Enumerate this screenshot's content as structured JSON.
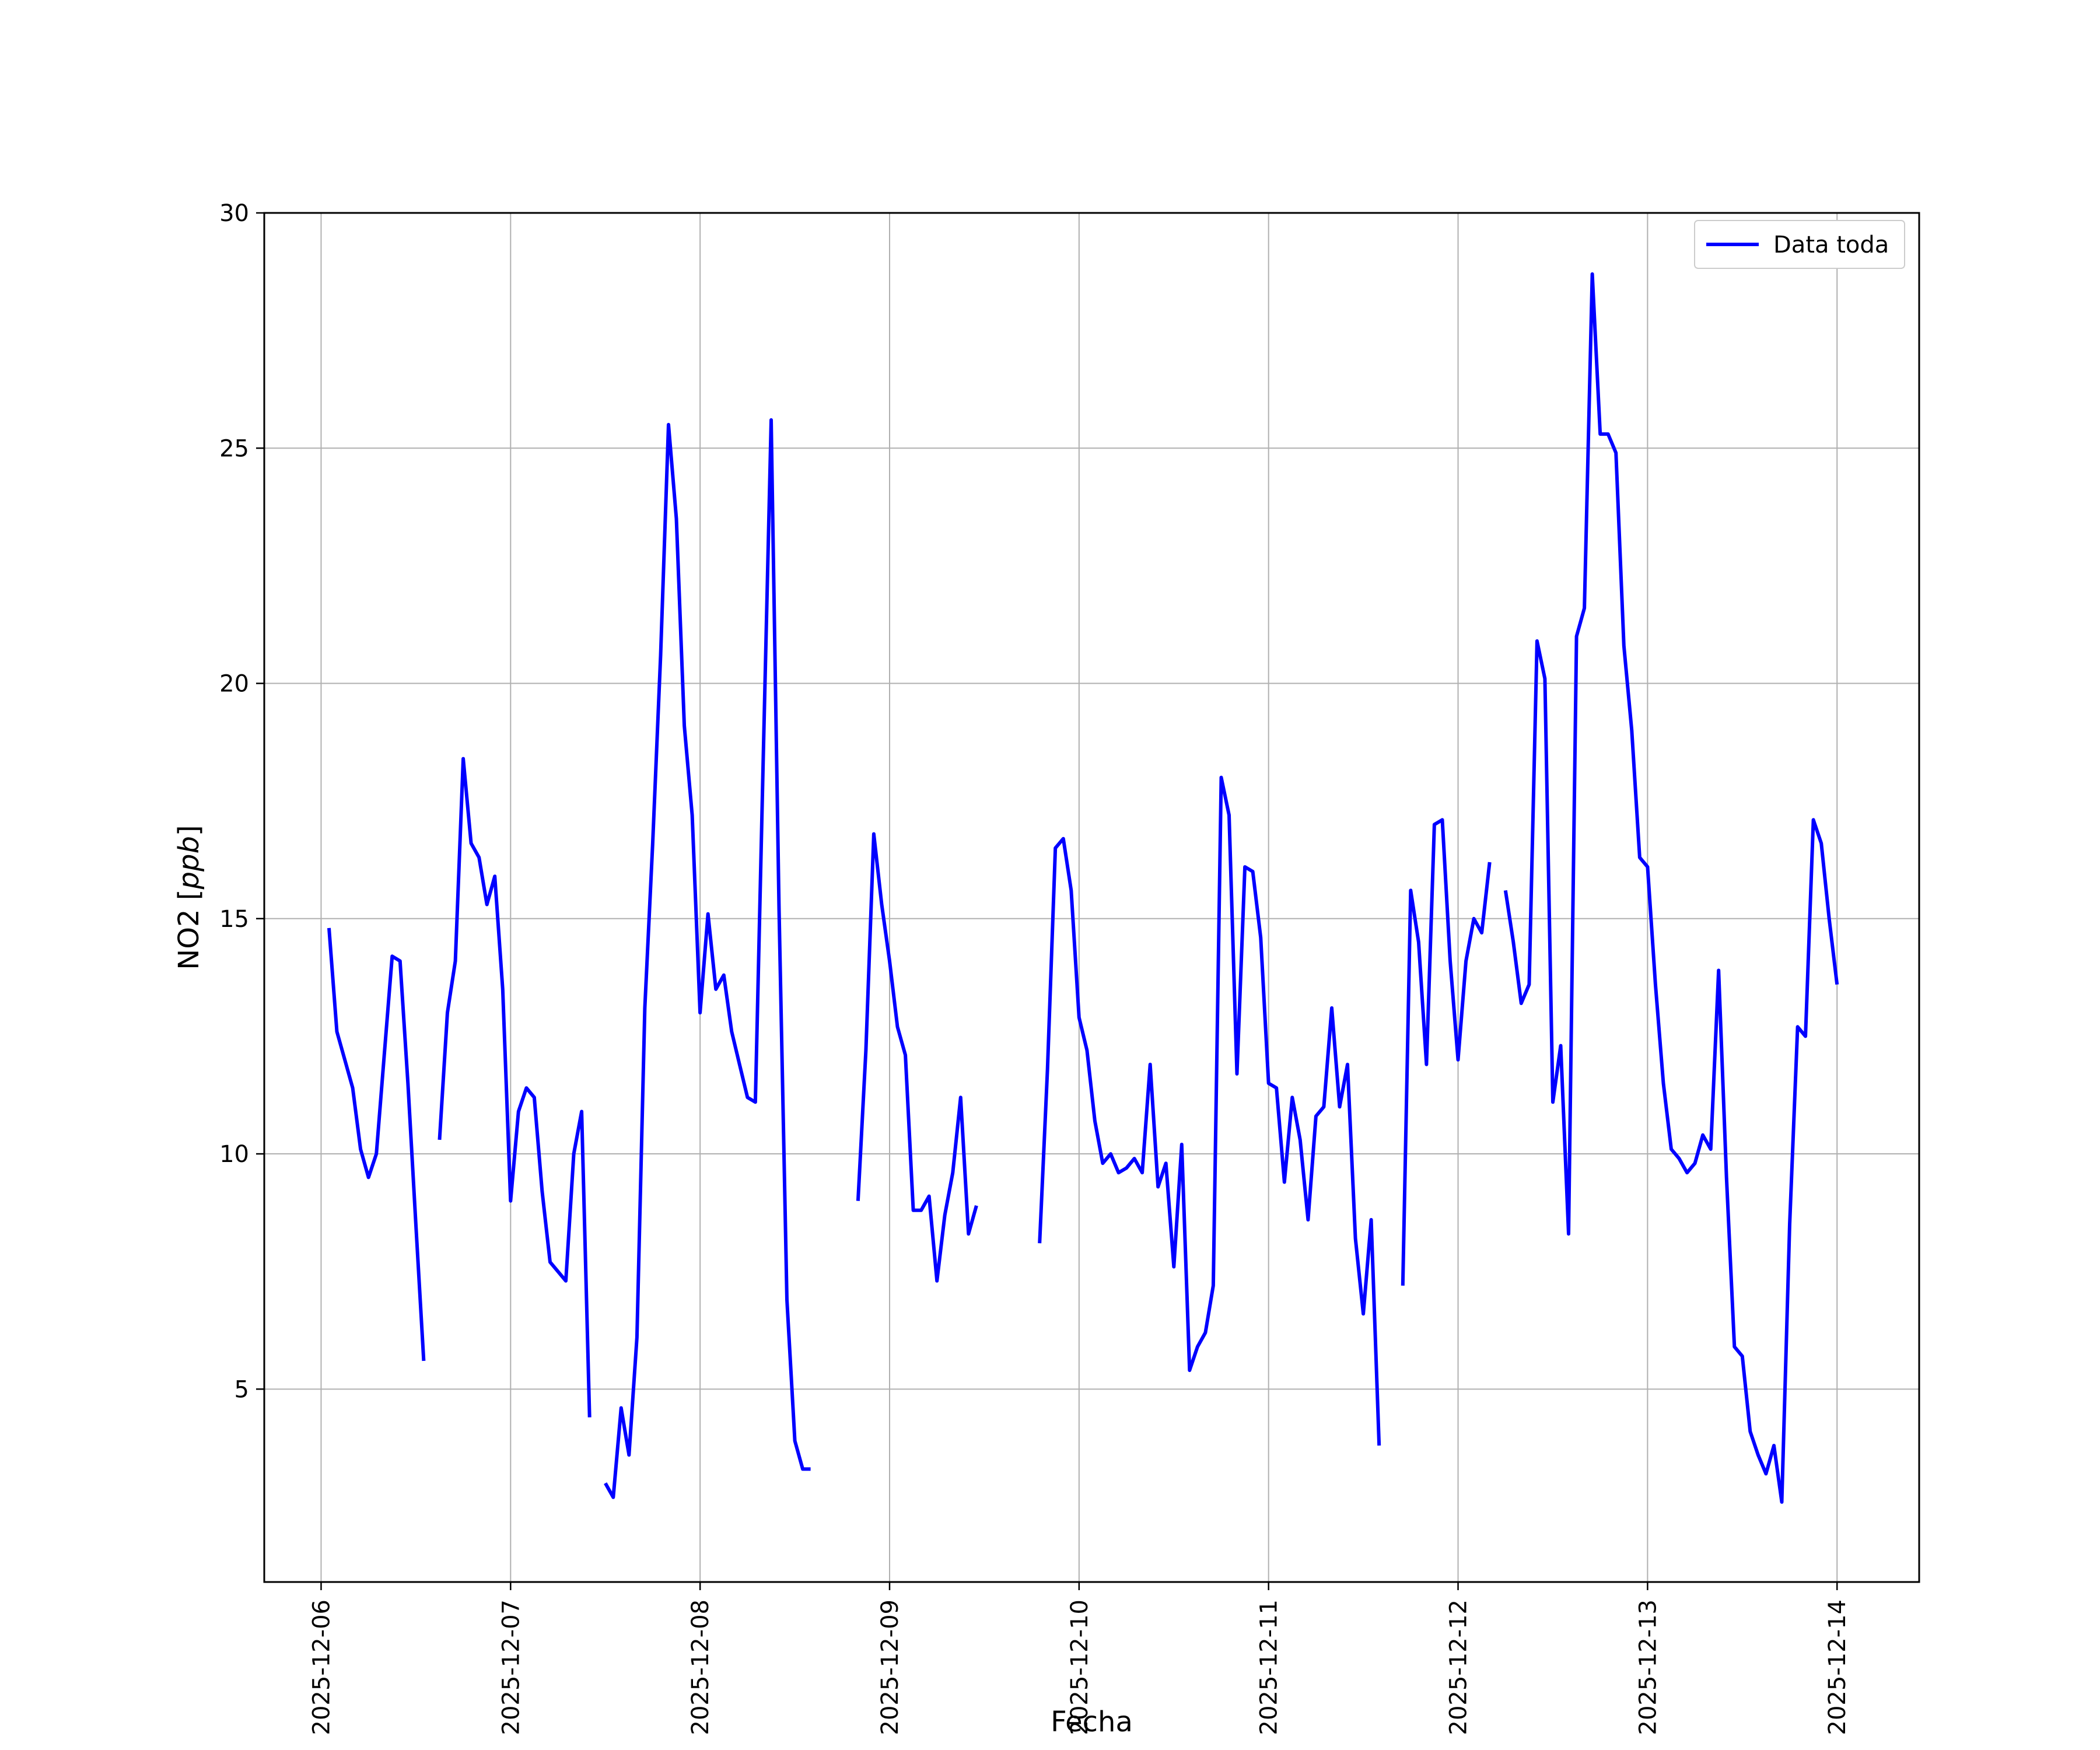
{
  "chart_data": {
    "type": "line",
    "title": "",
    "xlabel": "Fecha",
    "ylabel": "NO2 [ppb]",
    "ylabel_plain": "NO2 [",
    "ylabel_italic": "ppb",
    "ylabel_close": "]",
    "xlim": [
      "2025-12-05 16:48",
      "2025-12-14 10:24"
    ],
    "ylim": [
      0.9,
      30
    ],
    "yticks": [
      5,
      10,
      15,
      20,
      25,
      30
    ],
    "xticks": [
      "2025-12-06",
      "2025-12-07",
      "2025-12-08",
      "2025-12-09",
      "2025-12-10",
      "2025-12-11",
      "2025-12-12",
      "2025-12-13",
      "2025-12-14"
    ],
    "grid": true,
    "legend": {
      "position": "top-right",
      "entries": [
        "Data toda"
      ]
    },
    "series": [
      {
        "name": "Data toda",
        "color": "#0000ff",
        "points": [
          [
            "2025-12-06 01:00",
            14.8
          ],
          [
            "2025-12-06 02:00",
            12.6
          ],
          [
            "2025-12-06 03:00",
            12.0
          ],
          [
            "2025-12-06 04:00",
            11.4
          ],
          [
            "2025-12-06 05:00",
            10.1
          ],
          [
            "2025-12-06 06:00",
            9.5
          ],
          [
            "2025-12-06 07:00",
            10.0
          ],
          [
            "2025-12-06 08:00",
            12.1
          ],
          [
            "2025-12-06 09:00",
            14.2
          ],
          [
            "2025-12-06 10:00",
            14.1
          ],
          [
            "2025-12-06 11:00",
            11.5
          ],
          [
            "2025-12-06 12:00",
            8.5
          ],
          [
            "2025-12-06 13:00",
            5.6
          ],
          null,
          [
            "2025-12-06 15:00",
            10.3
          ],
          [
            "2025-12-06 16:00",
            13.0
          ],
          [
            "2025-12-06 17:00",
            14.1
          ],
          [
            "2025-12-06 18:00",
            18.4
          ],
          [
            "2025-12-06 19:00",
            16.6
          ],
          [
            "2025-12-06 20:00",
            16.3
          ],
          [
            "2025-12-06 21:00",
            15.3
          ],
          [
            "2025-12-06 22:00",
            15.9
          ],
          [
            "2025-12-06 23:00",
            13.5
          ],
          [
            "2025-12-07 00:00",
            9.0
          ],
          [
            "2025-12-07 01:00",
            10.9
          ],
          [
            "2025-12-07 02:00",
            11.4
          ],
          [
            "2025-12-07 03:00",
            11.2
          ],
          [
            "2025-12-07 04:00",
            9.2
          ],
          [
            "2025-12-07 05:00",
            7.7
          ],
          [
            "2025-12-07 06:00",
            7.5
          ],
          [
            "2025-12-07 07:00",
            7.3
          ],
          [
            "2025-12-07 08:00",
            10.0
          ],
          [
            "2025-12-07 09:00",
            10.9
          ],
          [
            "2025-12-07 10:00",
            4.4
          ],
          null,
          [
            "2025-12-07 12:00",
            3.0
          ],
          [
            "2025-12-07 13:00",
            2.7
          ],
          [
            "2025-12-07 14:00",
            4.6
          ],
          [
            "2025-12-07 15:00",
            3.6
          ],
          [
            "2025-12-07 16:00",
            6.1
          ],
          [
            "2025-12-07 17:00",
            13.1
          ],
          [
            "2025-12-07 18:00",
            16.6
          ],
          [
            "2025-12-07 19:00",
            20.6
          ],
          [
            "2025-12-07 20:00",
            25.5
          ],
          [
            "2025-12-07 21:00",
            23.5
          ],
          [
            "2025-12-07 22:00",
            19.1
          ],
          [
            "2025-12-07 23:00",
            17.2
          ],
          [
            "2025-12-08 00:00",
            13.0
          ],
          [
            "2025-12-08 01:00",
            15.1
          ],
          [
            "2025-12-08 02:00",
            13.5
          ],
          [
            "2025-12-08 03:00",
            13.8
          ],
          [
            "2025-12-08 04:00",
            12.6
          ],
          [
            "2025-12-08 05:00",
            11.9
          ],
          [
            "2025-12-08 06:00",
            11.2
          ],
          [
            "2025-12-08 07:00",
            11.1
          ],
          [
            "2025-12-08 08:00",
            18.4
          ],
          [
            "2025-12-08 09:00",
            25.6
          ],
          [
            "2025-12-08 10:00",
            15.2
          ],
          [
            "2025-12-08 11:00",
            6.9
          ],
          [
            "2025-12-08 12:00",
            3.9
          ],
          [
            "2025-12-08 13:00",
            3.3
          ],
          [
            "2025-12-08 14:00",
            3.3
          ],
          null,
          [
            "2025-12-08 20:00",
            9.0
          ],
          [
            "2025-12-08 21:00",
            12.2
          ],
          [
            "2025-12-08 22:00",
            16.8
          ],
          [
            "2025-12-08 23:00",
            15.3
          ],
          [
            "2025-12-09 00:00",
            14.1
          ],
          [
            "2025-12-09 01:00",
            12.7
          ],
          [
            "2025-12-09 02:00",
            12.1
          ],
          [
            "2025-12-09 03:00",
            8.8
          ],
          [
            "2025-12-09 04:00",
            8.8
          ],
          [
            "2025-12-09 05:00",
            9.1
          ],
          [
            "2025-12-09 06:00",
            7.3
          ],
          [
            "2025-12-09 07:00",
            8.7
          ],
          [
            "2025-12-09 08:00",
            9.6
          ],
          [
            "2025-12-09 09:00",
            11.2
          ],
          [
            "2025-12-09 10:00",
            8.3
          ],
          [
            "2025-12-09 11:00",
            8.9
          ],
          null,
          [
            "2025-12-09 19:00",
            8.1
          ],
          [
            "2025-12-09 20:00",
            11.8
          ],
          [
            "2025-12-09 21:00",
            16.5
          ],
          [
            "2025-12-09 22:00",
            16.7
          ],
          [
            "2025-12-09 23:00",
            15.6
          ],
          [
            "2025-12-10 00:00",
            12.9
          ],
          [
            "2025-12-10 01:00",
            12.2
          ],
          [
            "2025-12-10 02:00",
            10.7
          ],
          [
            "2025-12-10 03:00",
            9.8
          ],
          [
            "2025-12-10 04:00",
            10.0
          ],
          [
            "2025-12-10 05:00",
            9.6
          ],
          [
            "2025-12-10 06:00",
            9.7
          ],
          [
            "2025-12-10 07:00",
            9.9
          ],
          [
            "2025-12-10 08:00",
            9.6
          ],
          [
            "2025-12-10 09:00",
            11.9
          ],
          [
            "2025-12-10 10:00",
            9.3
          ],
          [
            "2025-12-10 11:00",
            9.8
          ],
          [
            "2025-12-10 12:00",
            7.6
          ],
          [
            "2025-12-10 13:00",
            10.2
          ],
          [
            "2025-12-10 14:00",
            5.4
          ],
          [
            "2025-12-10 15:00",
            5.9
          ],
          [
            "2025-12-10 16:00",
            6.2
          ],
          [
            "2025-12-10 17:00",
            7.2
          ],
          [
            "2025-12-10 18:00",
            18.0
          ],
          [
            "2025-12-10 19:00",
            17.2
          ],
          [
            "2025-12-10 20:00",
            11.7
          ],
          [
            "2025-12-10 21:00",
            16.1
          ],
          [
            "2025-12-10 22:00",
            16.0
          ],
          [
            "2025-12-10 23:00",
            14.6
          ],
          [
            "2025-12-11 00:00",
            11.5
          ],
          [
            "2025-12-11 01:00",
            11.4
          ],
          [
            "2025-12-11 02:00",
            9.4
          ],
          [
            "2025-12-11 03:00",
            11.2
          ],
          [
            "2025-12-11 04:00",
            10.3
          ],
          [
            "2025-12-11 05:00",
            8.6
          ],
          [
            "2025-12-11 06:00",
            10.8
          ],
          [
            "2025-12-11 07:00",
            11.0
          ],
          [
            "2025-12-11 08:00",
            13.1
          ],
          [
            "2025-12-11 09:00",
            11.0
          ],
          [
            "2025-12-11 10:00",
            11.9
          ],
          [
            "2025-12-11 11:00",
            8.2
          ],
          [
            "2025-12-11 12:00",
            6.6
          ],
          [
            "2025-12-11 13:00",
            8.6
          ],
          [
            "2025-12-11 14:00",
            3.8
          ],
          null,
          [
            "2025-12-11 17:00",
            7.2
          ],
          [
            "2025-12-11 18:00",
            15.6
          ],
          [
            "2025-12-11 19:00",
            14.5
          ],
          [
            "2025-12-11 20:00",
            11.9
          ],
          [
            "2025-12-11 21:00",
            17.0
          ],
          [
            "2025-12-11 22:00",
            17.1
          ],
          [
            "2025-12-11 23:00",
            14.1
          ],
          [
            "2025-12-12 00:00",
            12.0
          ],
          [
            "2025-12-12 01:00",
            14.1
          ],
          [
            "2025-12-12 02:00",
            15.0
          ],
          [
            "2025-12-12 03:00",
            14.7
          ],
          [
            "2025-12-12 04:00",
            16.2
          ],
          null,
          [
            "2025-12-12 06:00",
            15.6
          ],
          [
            "2025-12-12 07:00",
            14.5
          ],
          [
            "2025-12-12 08:00",
            13.2
          ],
          [
            "2025-12-12 09:00",
            13.6
          ],
          [
            "2025-12-12 10:00",
            20.9
          ],
          [
            "2025-12-12 11:00",
            20.1
          ],
          [
            "2025-12-12 12:00",
            11.1
          ],
          [
            "2025-12-12 13:00",
            12.3
          ],
          [
            "2025-12-12 14:00",
            8.3
          ],
          [
            "2025-12-12 15:00",
            21.0
          ],
          [
            "2025-12-12 16:00",
            21.6
          ],
          [
            "2025-12-12 17:00",
            28.7
          ],
          [
            "2025-12-12 18:00",
            25.3
          ],
          [
            "2025-12-12 19:00",
            25.3
          ],
          [
            "2025-12-12 20:00",
            24.9
          ],
          [
            "2025-12-12 21:00",
            20.8
          ],
          [
            "2025-12-12 22:00",
            19.0
          ],
          [
            "2025-12-12 23:00",
            16.3
          ],
          [
            "2025-12-13 00:00",
            16.1
          ],
          [
            "2025-12-13 01:00",
            13.6
          ],
          [
            "2025-12-13 02:00",
            11.5
          ],
          [
            "2025-12-13 03:00",
            10.1
          ],
          [
            "2025-12-13 04:00",
            9.9
          ],
          [
            "2025-12-13 05:00",
            9.6
          ],
          [
            "2025-12-13 06:00",
            9.8
          ],
          [
            "2025-12-13 07:00",
            10.4
          ],
          [
            "2025-12-13 08:00",
            10.1
          ],
          [
            "2025-12-13 09:00",
            13.9
          ],
          [
            "2025-12-13 10:00",
            9.5
          ],
          [
            "2025-12-13 11:00",
            5.9
          ],
          [
            "2025-12-13 12:00",
            5.7
          ],
          [
            "2025-12-13 13:00",
            4.1
          ],
          [
            "2025-12-13 14:00",
            3.6
          ],
          [
            "2025-12-13 15:00",
            3.2
          ],
          [
            "2025-12-13 16:00",
            3.8
          ],
          [
            "2025-12-13 17:00",
            2.6
          ],
          [
            "2025-12-13 18:00",
            8.5
          ],
          [
            "2025-12-13 19:00",
            12.7
          ],
          [
            "2025-12-13 20:00",
            12.5
          ],
          [
            "2025-12-13 21:00",
            17.1
          ],
          [
            "2025-12-13 22:00",
            16.6
          ],
          [
            "2025-12-13 23:00",
            15.0
          ],
          [
            "2025-12-14 00:00",
            13.6
          ]
        ]
      }
    ]
  }
}
